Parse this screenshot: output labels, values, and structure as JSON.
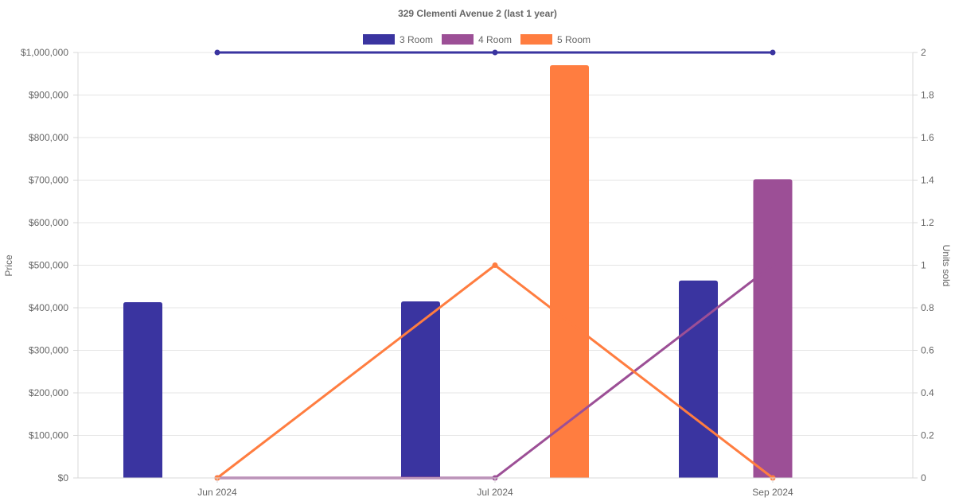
{
  "chart_data": {
    "type": "bar",
    "title": "329 Clementi Avenue 2 (last 1 year)",
    "categories": [
      "Jun 2024",
      "Jul 2024",
      "Sep 2024"
    ],
    "y_left": {
      "label": "Price",
      "range": [
        0,
        1000000
      ],
      "tick_values": [
        0,
        100000,
        200000,
        300000,
        400000,
        500000,
        600000,
        700000,
        800000,
        900000,
        1000000
      ],
      "tick_labels": [
        "$0",
        "$100,000",
        "$200,000",
        "$300,000",
        "$400,000",
        "$500,000",
        "$600,000",
        "$700,000",
        "$800,000",
        "$900,000",
        "$1,000,000"
      ]
    },
    "y_right": {
      "label": "Units sold",
      "range": [
        0,
        2
      ],
      "tick_values": [
        0,
        0.2,
        0.4,
        0.6,
        0.8,
        1,
        1.2,
        1.4,
        1.6,
        1.8,
        2
      ],
      "tick_labels": [
        "0",
        "0.2",
        "0.4",
        "0.6",
        "0.8",
        "1",
        "1.2",
        "1.4",
        "1.6",
        "1.8",
        "2"
      ]
    },
    "legend": {
      "placement": "top-center",
      "items": [
        "3 Room",
        "4 Room",
        "5 Room"
      ]
    },
    "grid": true,
    "bar_series": [
      {
        "name": "3 Room",
        "color": "#3a34a0",
        "values": [
          413000,
          415000,
          464000
        ]
      },
      {
        "name": "4 Room",
        "color": "#9c4f96",
        "values": [
          null,
          null,
          702000
        ]
      },
      {
        "name": "5 Room",
        "color": "#ff7d40",
        "values": [
          null,
          970000,
          null
        ]
      }
    ],
    "line_series": [
      {
        "name": "3 Room",
        "color": "#3a34a0",
        "values": [
          2,
          2,
          2
        ]
      },
      {
        "name": "4 Room",
        "color": "#9c4f96",
        "values": [
          0,
          0,
          1
        ]
      },
      {
        "name": "5 Room",
        "color": "#ff7d40",
        "values": [
          0,
          1,
          0
        ]
      }
    ]
  }
}
